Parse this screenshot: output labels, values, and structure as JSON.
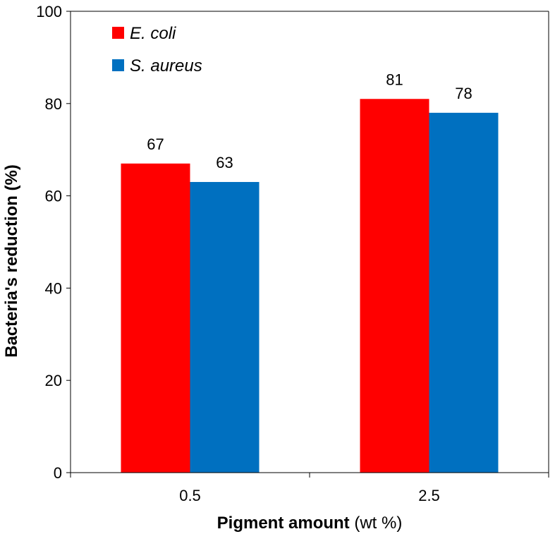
{
  "chart_data": {
    "type": "bar",
    "categories": [
      "0.5",
      "2.5"
    ],
    "series": [
      {
        "name": "E. coli",
        "values": [
          67,
          81
        ],
        "color": "#ff0000"
      },
      {
        "name": "S. aureus",
        "values": [
          63,
          78
        ],
        "color": "#0070c0"
      }
    ],
    "data_labels": [
      [
        "67",
        "81"
      ],
      [
        "63",
        "78"
      ]
    ],
    "xlabel_bold": "Pigment amount",
    "xlabel_rest": " (wt %)",
    "ylabel": "Bacteria's reduction (%)",
    "ylim": [
      0,
      100
    ],
    "yticks": [
      "0",
      "20",
      "40",
      "60",
      "80",
      "100"
    ],
    "legend_position": "top-left",
    "grid": false
  }
}
